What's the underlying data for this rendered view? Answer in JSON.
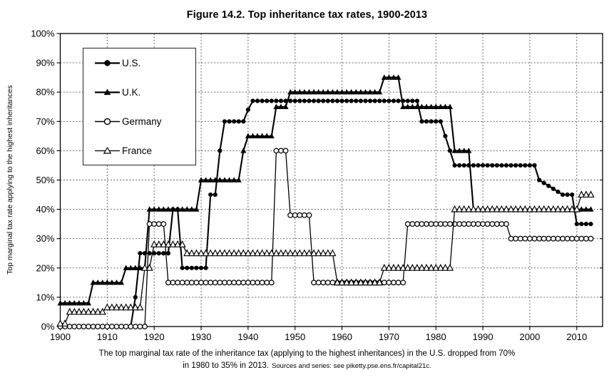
{
  "page": {
    "title": "Figure 14.2. Top inheritance tax rates, 1900-2013",
    "caption_line1": "The top marginal tax rate of the inheritance tax (applying to the highest inheritances) in the U.S. dropped from 70%",
    "caption_line2": "in 1980 to 35% in 2013.",
    "caption_source": "Sources and series: see piketty.pse.ens.fr/capital21c."
  },
  "chart_data": {
    "type": "line",
    "title": "Figure 14.2. Top inheritance tax rates, 1900-2013",
    "xlabel": "",
    "ylabel": "Top marginal tax rate applying to the highest inheritances",
    "xlim": [
      1900,
      2015.5
    ],
    "ylim": [
      0,
      100
    ],
    "x_ticks": [
      1900,
      1910,
      1920,
      1930,
      1940,
      1950,
      1960,
      1970,
      1980,
      1990,
      2000,
      2010
    ],
    "y_ticks": [
      0,
      10,
      20,
      30,
      40,
      50,
      60,
      70,
      80,
      90,
      100
    ],
    "y_tick_suffix": "%",
    "grid": "dashed-both-directions",
    "legend_position": "upper-left",
    "line_color": "#000000",
    "background_color": "#ffffff",
    "segment_format": "[start_year, end_year, top_rate_percent]",
    "series": [
      {
        "id": "us",
        "name": "U.S.",
        "marker": "filled-circle",
        "segments": [
          [
            1900,
            1915,
            0
          ],
          [
            1916,
            1916,
            10
          ],
          [
            1917,
            1923,
            25
          ],
          [
            1924,
            1925,
            40
          ],
          [
            1926,
            1931,
            20
          ],
          [
            1932,
            1933,
            45
          ],
          [
            1934,
            1934,
            60
          ],
          [
            1935,
            1939,
            70
          ],
          [
            1940,
            1940,
            74
          ],
          [
            1941,
            1976,
            77
          ],
          [
            1977,
            1981,
            70
          ],
          [
            1982,
            1982,
            65
          ],
          [
            1983,
            1983,
            60
          ],
          [
            1984,
            2001,
            55
          ],
          [
            2002,
            2002,
            50
          ],
          [
            2003,
            2003,
            49
          ],
          [
            2004,
            2004,
            48
          ],
          [
            2005,
            2005,
            47
          ],
          [
            2006,
            2006,
            46
          ],
          [
            2007,
            2009,
            45
          ],
          [
            2010,
            2013,
            35
          ]
        ]
      },
      {
        "id": "uk",
        "name": "U.K.",
        "marker": "filled-triangle",
        "segments": [
          [
            1900,
            1906,
            8
          ],
          [
            1907,
            1913,
            15
          ],
          [
            1914,
            1918,
            20
          ],
          [
            1919,
            1929,
            40
          ],
          [
            1930,
            1938,
            50
          ],
          [
            1939,
            1939,
            60
          ],
          [
            1940,
            1945,
            65
          ],
          [
            1946,
            1948,
            75
          ],
          [
            1949,
            1968,
            80
          ],
          [
            1969,
            1972,
            85
          ],
          [
            1973,
            1983,
            75
          ],
          [
            1984,
            1987,
            60
          ],
          [
            1988,
            2013,
            40
          ]
        ]
      },
      {
        "id": "germany",
        "name": "Germany",
        "marker": "open-circle",
        "segments": [
          [
            1900,
            1918,
            0
          ],
          [
            1919,
            1922,
            35
          ],
          [
            1923,
            1945,
            15
          ],
          [
            1946,
            1948,
            60
          ],
          [
            1949,
            1953,
            38
          ],
          [
            1954,
            1973,
            15
          ],
          [
            1974,
            1995,
            35
          ],
          [
            1996,
            2013,
            30
          ]
        ]
      },
      {
        "id": "france",
        "name": "France",
        "marker": "open-triangle",
        "segments": [
          [
            1900,
            1901,
            1
          ],
          [
            1902,
            1909,
            5
          ],
          [
            1910,
            1917,
            6.5
          ],
          [
            1918,
            1919,
            20
          ],
          [
            1920,
            1926,
            28
          ],
          [
            1927,
            1958,
            25
          ],
          [
            1959,
            1968,
            15
          ],
          [
            1969,
            1983,
            20
          ],
          [
            1984,
            2010,
            40
          ],
          [
            2011,
            2013,
            45
          ]
        ]
      }
    ]
  }
}
